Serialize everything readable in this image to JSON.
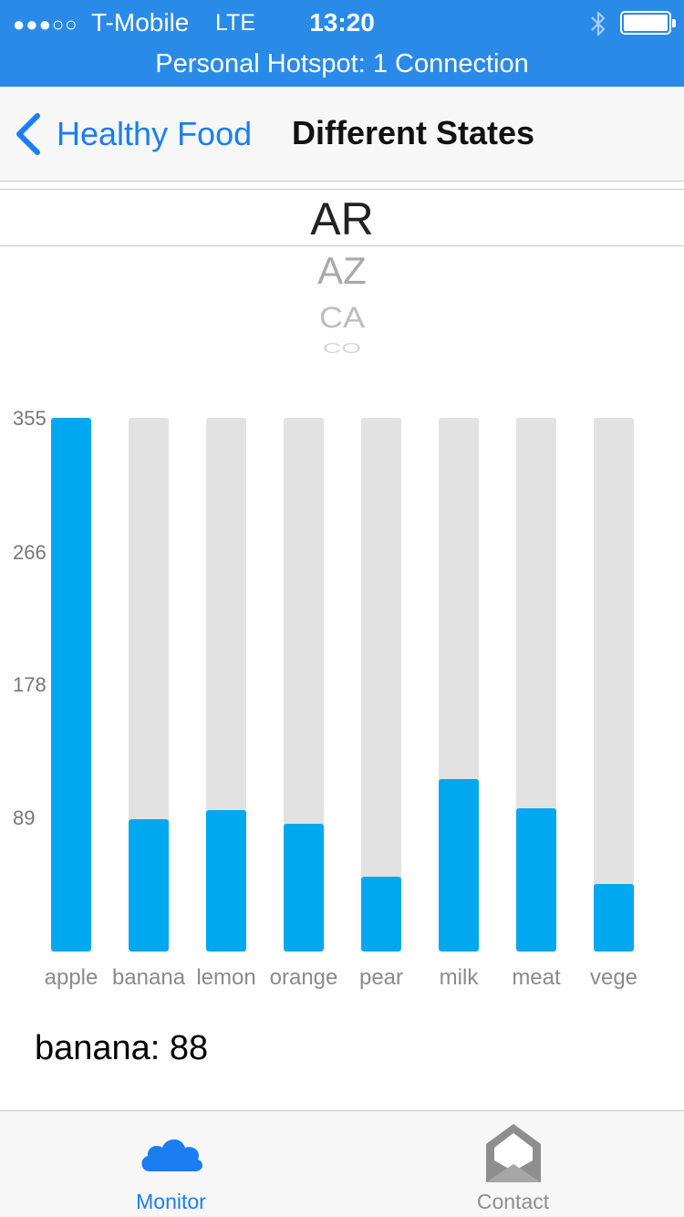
{
  "status_bar": {
    "signal": "●●●○○",
    "carrier": "T-Mobile",
    "network": "LTE",
    "time": "13:20",
    "hotspot": "Personal Hotspot: 1 Connection",
    "bluetooth_icon": "bluetooth-icon",
    "battery_icon": "battery-icon"
  },
  "nav": {
    "back_label": "Healthy Food",
    "back_icon": "chevron-left-icon",
    "title": "Different States"
  },
  "picker": {
    "selected": "AR",
    "following": [
      "AZ",
      "CA",
      "CO"
    ]
  },
  "chart_data": {
    "type": "bar",
    "categories": [
      "apple",
      "banana",
      "lemon",
      "orange",
      "pear",
      "milk",
      "meat",
      "vege"
    ],
    "values": [
      355,
      88,
      94,
      85,
      50,
      115,
      95,
      45
    ],
    "ylim": [
      0,
      355
    ],
    "yticks": [
      "355",
      "266",
      "178",
      "89"
    ],
    "ytick_values": [
      355,
      266,
      178,
      89
    ],
    "colors": {
      "fill": "#00a8ef",
      "track": "#e2e2e2"
    },
    "title": "",
    "xlabel": "",
    "ylabel": ""
  },
  "selected_readout": "banana: 88",
  "tabs": [
    {
      "label": "Monitor",
      "icon": "cloud-icon",
      "active": true
    },
    {
      "label": "Contact",
      "icon": "envelope-icon",
      "active": false
    }
  ],
  "colors": {
    "accent": "#1a7ef2",
    "status_bar": "#2a8ae8",
    "inactive": "#8e8e8e"
  }
}
